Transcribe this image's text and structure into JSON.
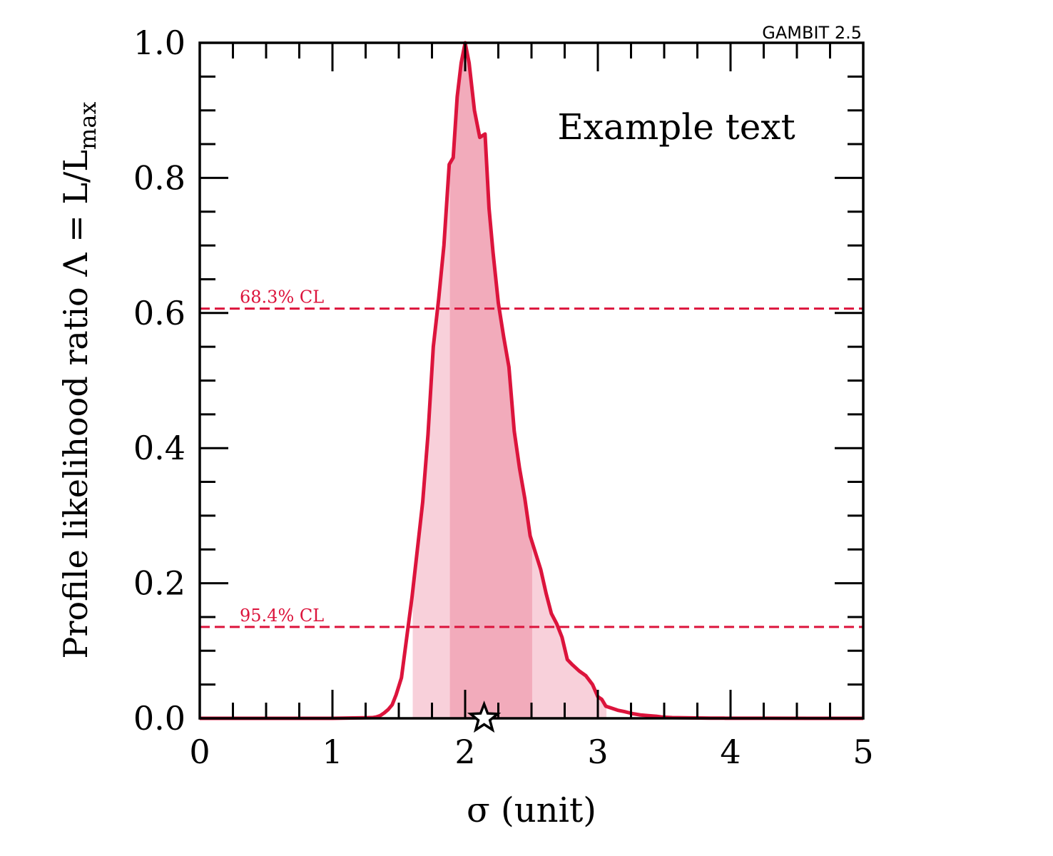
{
  "chart_data": {
    "type": "line",
    "title": "",
    "xlabel": "σ (unit)",
    "ylabel": "Profile likelihood ratio Λ = L/L",
    "ylabel_sub": "max",
    "xlim": [
      0,
      5
    ],
    "ylim": [
      0,
      1
    ],
    "x_ticks": [
      0,
      1,
      2,
      3,
      4,
      5
    ],
    "x_tick_labels": [
      "0",
      "1",
      "2",
      "3",
      "4",
      "5"
    ],
    "y_ticks": [
      0,
      0.2,
      0.4,
      0.6,
      0.8,
      1.0
    ],
    "y_tick_labels": [
      "0.0",
      "0.2",
      "0.4",
      "0.6",
      "0.8",
      "1.0"
    ],
    "grid": false,
    "watermark": "GAMBIT 2.5",
    "annotation": "Example text",
    "colors": {
      "line": "#dc143c",
      "band68": "#f2abbb",
      "band95": "#f8d0da"
    },
    "series": [
      {
        "x": [
          0,
          1.0,
          1.3,
          1.33,
          1.36,
          1.39,
          1.42,
          1.45,
          1.48,
          1.52,
          1.56,
          1.6,
          1.64,
          1.68,
          1.72,
          1.76,
          1.8,
          1.84,
          1.88,
          1.91,
          1.94,
          1.97,
          2.0,
          2.03,
          2.07,
          2.11,
          2.15,
          2.18,
          2.21,
          2.25,
          2.29,
          2.33,
          2.37,
          2.41,
          2.45,
          2.49,
          2.53,
          2.57,
          2.61,
          2.65,
          2.69,
          2.73,
          2.77,
          2.81,
          2.86,
          2.91,
          2.96,
          3.0,
          3.03,
          3.06,
          3.09,
          3.12,
          3.15,
          3.2,
          3.26,
          3.32,
          3.38,
          3.44,
          3.48,
          3.52,
          3.56,
          3.65,
          3.75,
          3.85,
          3.95,
          4.1,
          4.3,
          4.6,
          5.0
        ],
        "y": [
          0,
          0.0,
          0.001,
          0.002,
          0.004,
          0.008,
          0.013,
          0.02,
          0.035,
          0.06,
          0.12,
          0.18,
          0.25,
          0.32,
          0.42,
          0.55,
          0.62,
          0.7,
          0.82,
          0.83,
          0.92,
          0.97,
          1.0,
          0.97,
          0.9,
          0.86,
          0.865,
          0.755,
          0.69,
          0.615,
          0.565,
          0.52,
          0.425,
          0.37,
          0.325,
          0.27,
          0.245,
          0.22,
          0.185,
          0.155,
          0.14,
          0.12,
          0.087,
          0.079,
          0.07,
          0.063,
          0.05,
          0.032,
          0.028,
          0.018,
          0.016,
          0.014,
          0.012,
          0.01,
          0.007,
          0.005,
          0.004,
          0.003,
          0.002,
          0.0015,
          0.001,
          0.0008,
          0.0005,
          0.0003,
          0.0002,
          0.0001,
          0.0001,
          0.0,
          0.0
        ]
      }
    ],
    "confidence_levels": [
      {
        "label": "68.3% CL",
        "y": 0.6065,
        "interval": [
          1.885,
          2.505
        ]
      },
      {
        "label": "95.4% CL",
        "y": 0.1353,
        "interval": [
          1.605,
          3.065
        ]
      }
    ],
    "best_fit": {
      "x": 2.143,
      "y": 0
    }
  }
}
